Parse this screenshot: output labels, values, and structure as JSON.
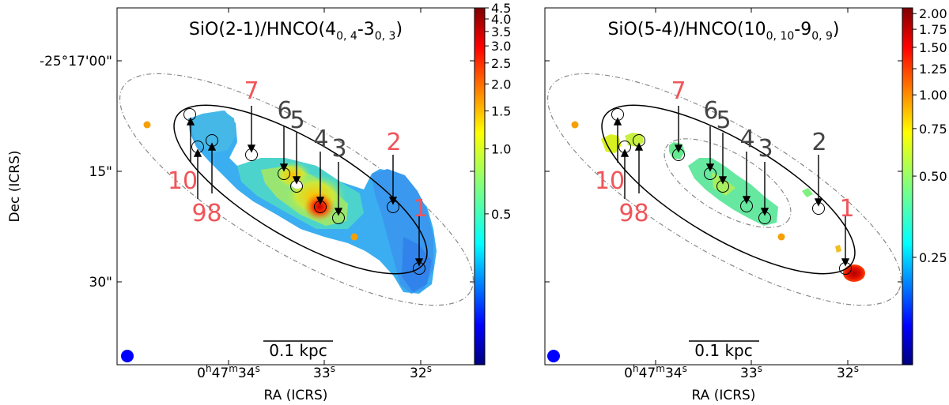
{
  "chart_data": [
    {
      "type": "heatmap",
      "title_main": "SiO(2-1)/HNCO(4",
      "title_sub1": "0, 4",
      "title_mid": "-3",
      "title_sub2": "0, 3",
      "title_end": ")",
      "xlabel": "RA (ICRS)",
      "ylabel": "Dec (ICRS)",
      "x_ticks": [
        {
          "h": "0",
          "hs": "h",
          "m": "47",
          "ms": "m",
          "s": "34",
          "ss": "s"
        },
        {
          "s": "33",
          "ss": "s"
        },
        {
          "s": "32",
          "ss": "s"
        }
      ],
      "y_ticks": [
        "-25°17'00\"",
        "15\"",
        "30\""
      ],
      "colorbar": {
        "scale": "log",
        "min": 0.1,
        "max": 4.5,
        "tick_labels": [
          "4.5",
          "4.0",
          "3.5",
          "3.0",
          "2.5",
          "2.0",
          "1.5",
          "1.0",
          "0.5"
        ],
        "tick_values": [
          4.5,
          4.0,
          3.5,
          3.0,
          2.5,
          2.0,
          1.5,
          1.0,
          0.5
        ]
      },
      "scalebar_label": "0.1 kpc",
      "sources": [
        {
          "id": "1",
          "color": "red"
        },
        {
          "id": "2",
          "color": "red"
        },
        {
          "id": "3",
          "color": "grey"
        },
        {
          "id": "4",
          "color": "grey"
        },
        {
          "id": "5",
          "color": "grey"
        },
        {
          "id": "6",
          "color": "grey"
        },
        {
          "id": "7",
          "color": "red"
        },
        {
          "id": "8",
          "color": "red"
        },
        {
          "id": "9",
          "color": "red"
        },
        {
          "id": "10",
          "color": "red"
        }
      ]
    },
    {
      "type": "heatmap",
      "title_main": "SiO(5-4)/HNCO(10",
      "title_sub1": "0, 10",
      "title_mid": "-9",
      "title_sub2": "0, 9",
      "title_end": ")",
      "xlabel": "RA (ICRS)",
      "ylabel": "",
      "x_ticks": [
        {
          "h": "0",
          "hs": "h",
          "m": "47",
          "ms": "m",
          "s": "34",
          "ss": "s"
        },
        {
          "s": "33",
          "ss": "s"
        },
        {
          "s": "32",
          "ss": "s"
        }
      ],
      "colorbar": {
        "scale": "log",
        "min": 0.1,
        "max": 2.1,
        "tick_labels": [
          "2.00",
          "1.75",
          "1.50",
          "1.25",
          "1.00",
          "0.75",
          "0.50",
          "0.25"
        ],
        "tick_values": [
          2.0,
          1.75,
          1.5,
          1.25,
          1.0,
          0.75,
          0.5,
          0.25
        ]
      },
      "scalebar_label": "0.1 kpc",
      "sources": [
        {
          "id": "1",
          "color": "red"
        },
        {
          "id": "2",
          "color": "grey"
        },
        {
          "id": "3",
          "color": "grey"
        },
        {
          "id": "4",
          "color": "grey"
        },
        {
          "id": "5",
          "color": "grey"
        },
        {
          "id": "6",
          "color": "grey"
        },
        {
          "id": "7",
          "color": "red"
        },
        {
          "id": "8",
          "color": "red"
        },
        {
          "id": "9",
          "color": "red"
        },
        {
          "id": "10",
          "color": "red"
        }
      ]
    }
  ],
  "colors": {
    "red_label": "#f0555a",
    "grey_label": "#444444",
    "beam": "#0000ff",
    "marker": "#f5a000"
  }
}
